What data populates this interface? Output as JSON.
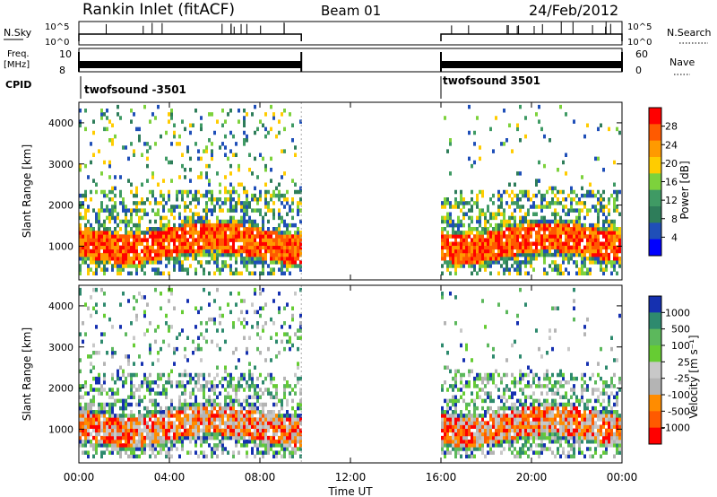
{
  "header": {
    "station": "Rankin Inlet (fitACF)",
    "beam": "Beam 01",
    "date": "24/Feb/2012"
  },
  "status_panels": {
    "nsky_label": "N.Sky",
    "nsky_ticks": [
      "10^5",
      "10^0"
    ],
    "nsearch_label": "N.Search",
    "nsearch_ticks": [
      "10^5",
      "10^0"
    ],
    "freq_label_1": "Freq.",
    "freq_label_2": "[MHz]",
    "freq_ticks": [
      "10",
      "8"
    ],
    "nave_label": "Nave",
    "nave_ticks": [
      "60",
      "0"
    ],
    "cpid_label": "CPID",
    "cpid_segments": [
      {
        "name": "twofsound -3501",
        "start_hour": 0,
        "end_hour": 9.83
      },
      {
        "name": "twofsound 3501",
        "start_hour": 16.0,
        "end_hour": 24.0
      }
    ]
  },
  "chart_data": [
    {
      "type": "heatmap",
      "panel": "power",
      "ylabel": "Slant Range [km]",
      "ylim": [
        180,
        4500
      ],
      "yticks": [
        "1000",
        "2000",
        "3000",
        "4000"
      ],
      "xlim": [
        0,
        24
      ],
      "colorbar_label": "Power [dB]",
      "colorbar_ticks": [
        "28",
        "24",
        "20",
        "16",
        "12",
        "8",
        "4"
      ],
      "colorbar_colors": [
        "#ff0000",
        "#ff5a00",
        "#ff9a00",
        "#ffcc00",
        "#7dd23c",
        "#3f9a64",
        "#2e7d5a",
        "#1f4fb8",
        "#0000ff"
      ],
      "data_intervals_hours": [
        [
          0,
          9.83
        ],
        [
          16.0,
          24.0
        ]
      ]
    },
    {
      "type": "heatmap",
      "panel": "velocity",
      "ylabel": "Slant Range [km]",
      "ylim": [
        180,
        4500
      ],
      "yticks": [
        "1000",
        "2000",
        "3000",
        "4000"
      ],
      "xlabel": "Time UT",
      "xlim": [
        0,
        24
      ],
      "xticks": [
        "00:00",
        "04:00",
        "08:00",
        "12:00",
        "16:00",
        "20:00",
        "00:00"
      ],
      "colorbar_label": "Velocity [m s⁻¹]",
      "colorbar_ticks": [
        "1000",
        "500",
        "100",
        "25",
        "-25",
        "-100",
        "-500",
        "-1000"
      ],
      "colorbar_colors": [
        "#1530b0",
        "#2e8a6e",
        "#5cb85c",
        "#66cc33",
        "#c8c8c8",
        "#b4b4b4",
        "#ff8c00",
        "#ff5a00",
        "#ff0000"
      ],
      "data_intervals_hours": [
        [
          0,
          9.83
        ],
        [
          16.0,
          24.0
        ]
      ]
    }
  ]
}
